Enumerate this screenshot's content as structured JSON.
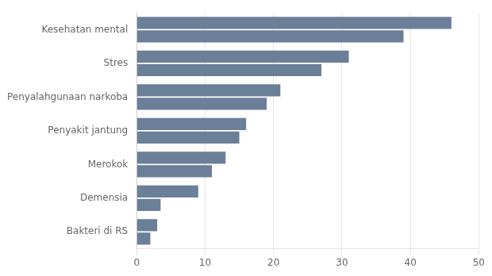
{
  "chart_data": {
    "type": "bar",
    "orientation": "horizontal",
    "categories": [
      "Kesehatan mental",
      "Stres",
      "Penyalahgunaan narkoba",
      "Penyakit jantung",
      "Merokok",
      "Demensia",
      "Bakteri di RS"
    ],
    "series": [
      {
        "color": "#6b7f99",
        "values": [
          46,
          31,
          21,
          16,
          13,
          9,
          3
        ]
      },
      {
        "color": "#6b7f99",
        "values": [
          39,
          27,
          19,
          15,
          11,
          3.5,
          2
        ]
      }
    ],
    "xlim": [
      0,
      50
    ],
    "xticks": [
      0,
      10,
      20,
      30,
      40,
      50
    ],
    "grid": true
  }
}
